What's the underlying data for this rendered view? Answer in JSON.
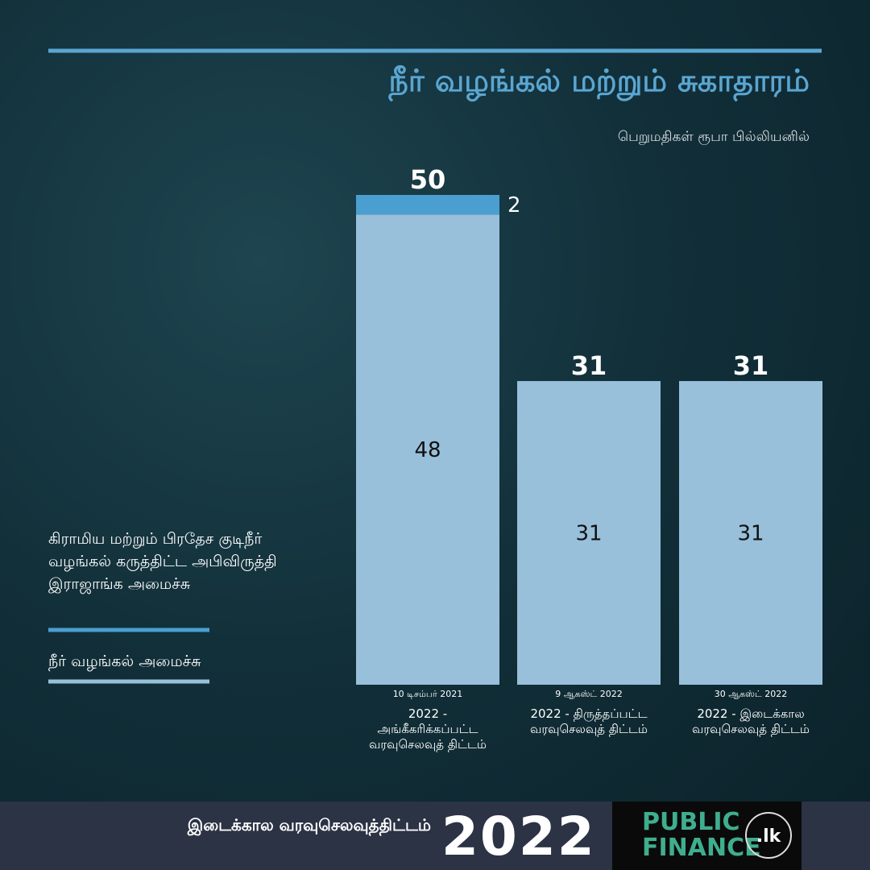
{
  "chart_data": {
    "type": "stacked-bar",
    "title": "நீர் வழங்கல் மற்றும் சுகாதாரம்",
    "subtitle": "பெறுமதிகள் ரூபா பில்லியனில்",
    "dates": [
      "10 டிசம்பர் 2021",
      "9 ஆகஸ்ட் 2022",
      "30 ஆகஸ்ட் 2022"
    ],
    "categories": [
      "2022 - அங்கீகரிக்கப்பட்ட வரவுசெலவுத் திட்டம்",
      "2022 - திருத்தப்பட்ட வரவுசெலவுத் திட்டம்",
      "2022 - இடைக்கால வரவுசெலவுத் திட்டம்"
    ],
    "series": [
      {
        "name": "நீர் வழங்கல் அமைச்சு",
        "color": "#98c0da",
        "values": [
          48,
          31,
          31
        ]
      },
      {
        "name": "கிராமிய மற்றும் பிரதேச குடிநீர் வழங்கல் கருத்திட்ட அபிவிருத்தி இராஜாங்க அமைச்சு",
        "color": "#4a9fd0",
        "values": [
          2,
          null,
          null
        ]
      }
    ],
    "totals": [
      50,
      31,
      31
    ]
  },
  "footer": {
    "label": "இடைக்கால வரவுசெலவுத்திட்டம்",
    "year": "2022",
    "brand": "PUBLIC FINANCE",
    "brand_suffix": ".lk"
  }
}
